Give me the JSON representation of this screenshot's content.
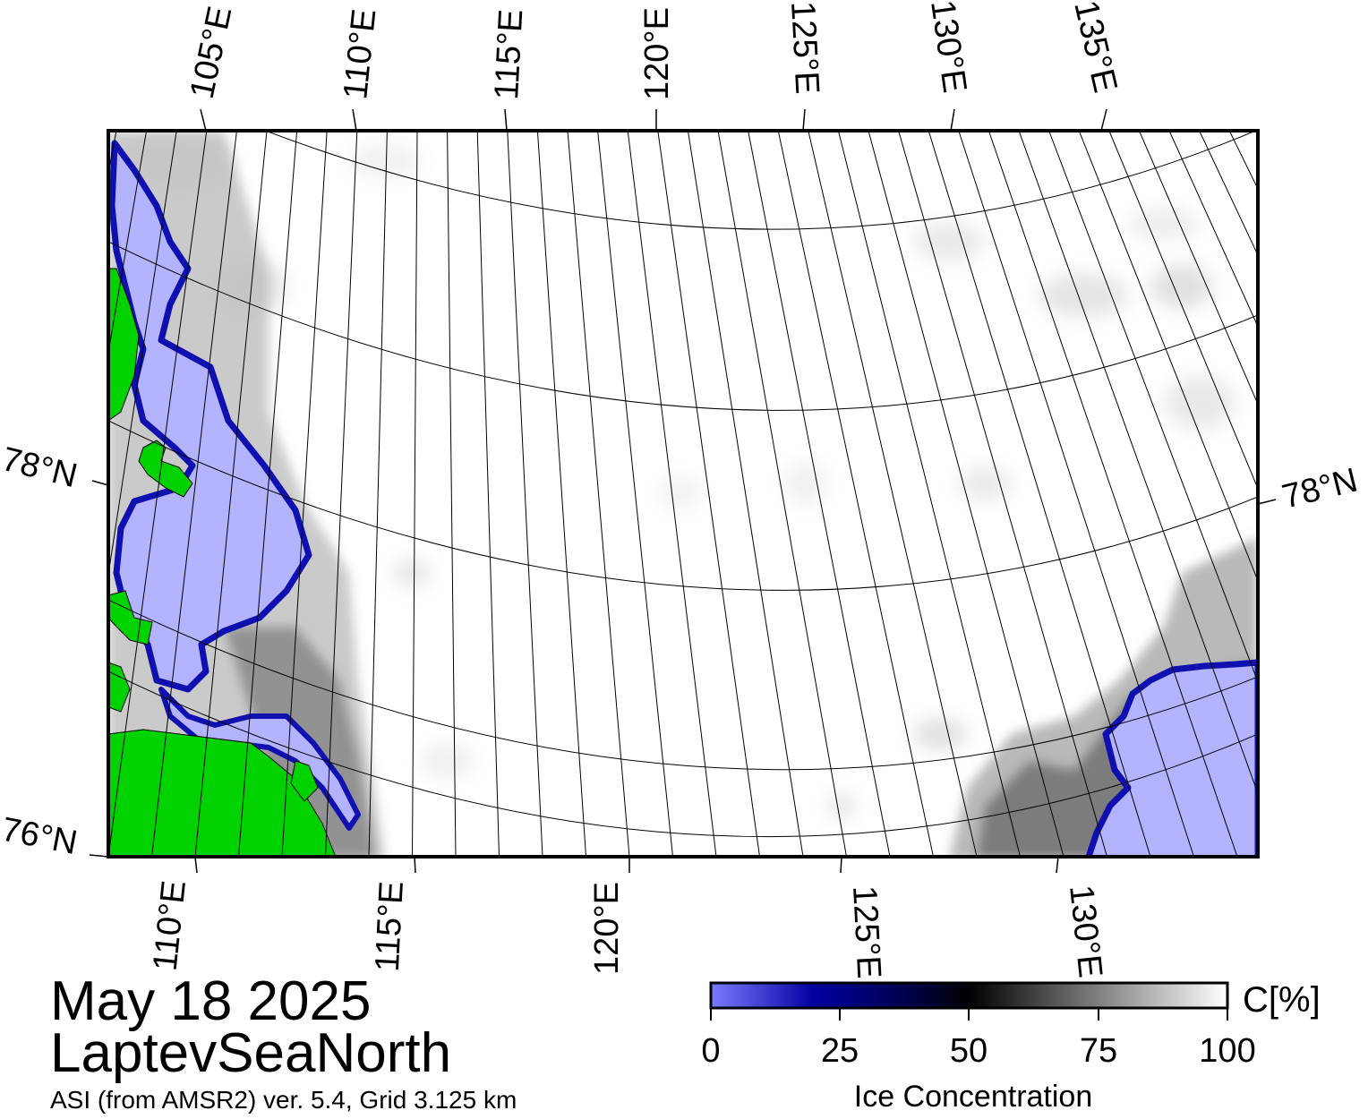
{
  "map": {
    "date": "May 18 2025",
    "region": "LaptevSeaNorth",
    "source": "ASI (from AMSR2) ver. 5.4,  Grid 3.125 km",
    "top_lon_labels": [
      "105°E",
      "110°E",
      "115°E",
      "120°E",
      "125°E",
      "130°E",
      "135°E"
    ],
    "bottom_lon_labels": [
      "110°E",
      "115°E",
      "120°E",
      "125°E",
      "130°E"
    ],
    "lat_labels_left": [
      "78°N",
      "76°N"
    ],
    "lat_labels_right": [
      "78°N"
    ]
  },
  "colorbar": {
    "unit": "C[%]",
    "title": "Ice Concentration",
    "ticks": [
      "0",
      "25",
      "50",
      "75",
      "100"
    ],
    "gradient": [
      "#7b7bff",
      "#0000a0",
      "#000040",
      "#000000",
      "#808080",
      "#ffffff"
    ]
  },
  "colors": {
    "land": "#00d200",
    "low_concentration_ice": "#b3b3ff",
    "ice_edge": "#1010b0",
    "graticule": "#000000"
  }
}
